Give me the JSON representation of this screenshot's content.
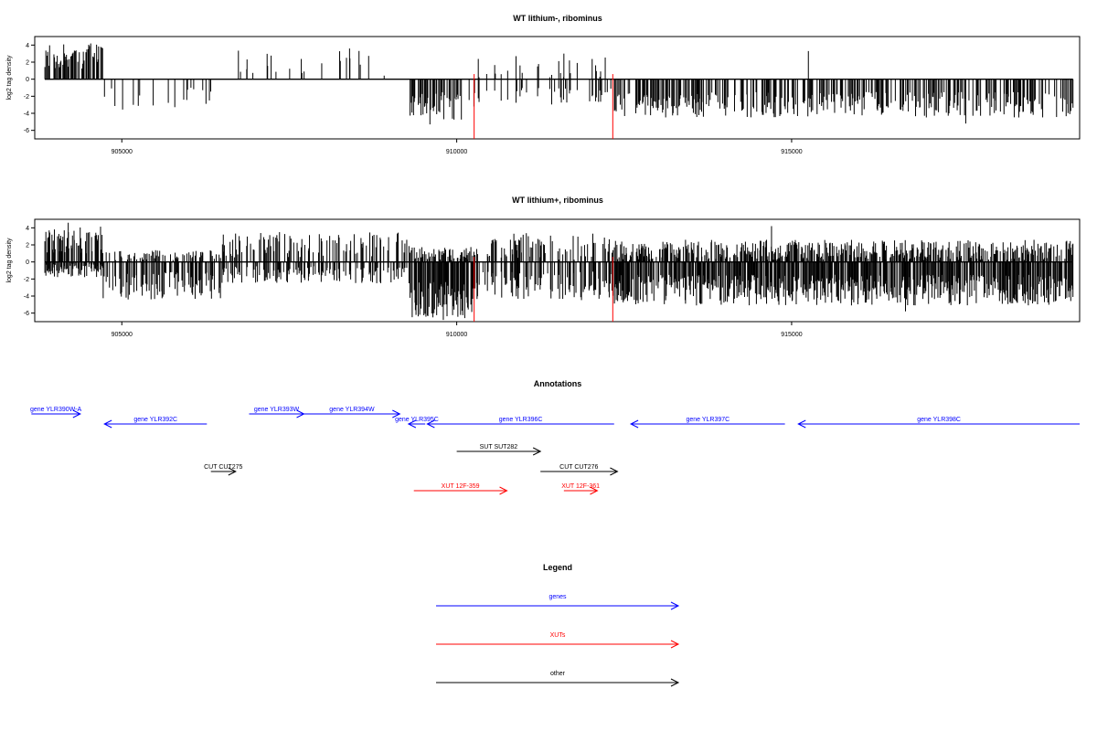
{
  "chart_data": [
    {
      "type": "bar",
      "title": "WT lithium-, ribominus",
      "ylabel": "log2 tag density",
      "xlim": [
        903700,
        919300
      ],
      "ylim": [
        -7,
        5
      ],
      "yticks": [
        4,
        2,
        0,
        -2,
        -4,
        -6
      ],
      "xticks": [
        905000,
        910000,
        915000
      ],
      "xtick_labels": [
        "905000",
        "910000",
        "915000"
      ],
      "bar_color": "#000000",
      "marker_color": "#ff0000",
      "markers": [
        {
          "x": 910260,
          "y": -7.0
        },
        {
          "x": 912330,
          "y": -7.0
        }
      ],
      "regions": [
        {
          "from": 903850,
          "to": 904720,
          "density": 0.85,
          "pos_mean": 2.7,
          "pos_amp": 1.5,
          "neg_mean": 0,
          "neg_amp": 0,
          "seed": 11
        },
        {
          "from": 904720,
          "to": 906500,
          "density": 0.14,
          "pos_mean": 0,
          "pos_amp": 0,
          "neg_mean": -2.3,
          "neg_amp": 1.3,
          "seed": 12
        },
        {
          "from": 906500,
          "to": 909300,
          "density": 0.1,
          "pos_mean": 1.9,
          "pos_amp": 1.5,
          "neg_mean": 0,
          "neg_amp": 0,
          "seed": 13
        },
        {
          "from": 909300,
          "to": 910300,
          "density": 0.55,
          "pos_mean": 0,
          "pos_amp": 0,
          "neg_mean": -3.2,
          "neg_amp": 1.7,
          "seed": 14
        },
        {
          "from": 910300,
          "to": 912350,
          "density": 0.16,
          "pos_mean": 1.5,
          "pos_amp": 1.3,
          "neg_mean": -2.0,
          "neg_amp": 1.0,
          "seed": 15
        },
        {
          "from": 912350,
          "to": 919200,
          "density": 0.55,
          "pos_mean": 0,
          "pos_amp": 0,
          "neg_mean": -3.0,
          "neg_amp": 1.5,
          "seed": 16
        }
      ],
      "spikes": [
        {
          "x": 908400,
          "y": 3.6
        },
        {
          "x": 911600,
          "y": 3.0
        },
        {
          "x": 915250,
          "y": 3.3
        },
        {
          "x": 917600,
          "y": -5.2
        },
        {
          "x": 909600,
          "y": -5.3
        }
      ]
    },
    {
      "type": "bar",
      "title": "WT lithium+, ribominus",
      "ylabel": "log2 tag density",
      "xlim": [
        903700,
        919300
      ],
      "ylim": [
        -7,
        5
      ],
      "yticks": [
        4,
        2,
        0,
        -2,
        -4,
        -6
      ],
      "xticks": [
        905000,
        910000,
        915000
      ],
      "xtick_labels": [
        "905000",
        "910000",
        "915000"
      ],
      "bar_color": "#000000",
      "marker_color": "#ff0000",
      "markers": [
        {
          "x": 910260,
          "y": -7.0
        },
        {
          "x": 912330,
          "y": -7.0
        }
      ],
      "regions": [
        {
          "from": 903850,
          "to": 904720,
          "density": 0.9,
          "pos_mean": 2.6,
          "pos_amp": 1.6,
          "neg_mean": -1.0,
          "neg_amp": 0.8,
          "seed": 21
        },
        {
          "from": 904720,
          "to": 906500,
          "density": 0.55,
          "pos_mean": 0.8,
          "pos_amp": 0.6,
          "neg_mean": -2.8,
          "neg_amp": 1.6,
          "seed": 22
        },
        {
          "from": 906500,
          "to": 909300,
          "density": 0.5,
          "pos_mean": 2.0,
          "pos_amp": 1.5,
          "neg_mean": -1.5,
          "neg_amp": 1.0,
          "seed": 23
        },
        {
          "from": 909300,
          "to": 910300,
          "density": 0.95,
          "pos_mean": 1.0,
          "pos_amp": 0.8,
          "neg_mean": -4.5,
          "neg_amp": 2.2,
          "seed": 24
        },
        {
          "from": 910300,
          "to": 912350,
          "density": 0.6,
          "pos_mean": 1.8,
          "pos_amp": 1.6,
          "neg_mean": -2.8,
          "neg_amp": 1.7,
          "seed": 25
        },
        {
          "from": 912350,
          "to": 919200,
          "density": 0.9,
          "pos_mean": 1.4,
          "pos_amp": 1.2,
          "neg_mean": -3.3,
          "neg_amp": 1.8,
          "seed": 26
        }
      ],
      "spikes": [
        {
          "x": 904200,
          "y": 4.6
        },
        {
          "x": 914700,
          "y": 4.2
        },
        {
          "x": 909800,
          "y": -6.8
        },
        {
          "x": 916700,
          "y": -5.8
        }
      ]
    }
  ],
  "annotations": {
    "title": "Annotations",
    "xlim": [
      903700,
      919300
    ],
    "features": [
      {
        "label": "gene YLR390W-A",
        "start": 903650,
        "end": 904380,
        "row": 0,
        "color": "#0000ff"
      },
      {
        "label": "gene YLR392C",
        "start": 906270,
        "end": 904740,
        "row": 1,
        "color": "#0000ff"
      },
      {
        "label": "gene YLR393W",
        "start": 906900,
        "end": 907720,
        "row": 0,
        "color": "#0000ff"
      },
      {
        "label": "gene YLR394W",
        "start": 907720,
        "end": 909150,
        "row": 0,
        "color": "#0000ff"
      },
      {
        "label": "gene YLR395C",
        "start": 909530,
        "end": 909280,
        "row": 1,
        "color": "#0000ff"
      },
      {
        "label": "gene YLR396C",
        "start": 912350,
        "end": 909560,
        "row": 1,
        "color": "#0000ff"
      },
      {
        "label": "gene YLR397C",
        "start": 914900,
        "end": 912600,
        "row": 1,
        "color": "#0000ff"
      },
      {
        "label": "gene YLR398C",
        "start": 919300,
        "end": 915100,
        "row": 1,
        "color": "#0000ff"
      },
      {
        "label": "SUT SUT282",
        "start": 910000,
        "end": 911250,
        "row": 2,
        "color": "#000000"
      },
      {
        "label": "CUT CUT275",
        "start": 906330,
        "end": 906700,
        "row": 3,
        "color": "#000000"
      },
      {
        "label": "CUT CUT276",
        "start": 911250,
        "end": 912400,
        "row": 3,
        "color": "#000000"
      },
      {
        "label": "XUT 12F-359",
        "start": 909360,
        "end": 910750,
        "row": 4,
        "color": "#ff0000"
      },
      {
        "label": "XUT 12F-361",
        "start": 911600,
        "end": 912100,
        "row": 4,
        "color": "#ff0000"
      }
    ]
  },
  "legend": {
    "title": "Legend",
    "items": [
      {
        "label": "genes",
        "color": "#0000ff"
      },
      {
        "label": "XUTs",
        "color": "#ff0000"
      },
      {
        "label": "other",
        "color": "#000000"
      }
    ]
  }
}
